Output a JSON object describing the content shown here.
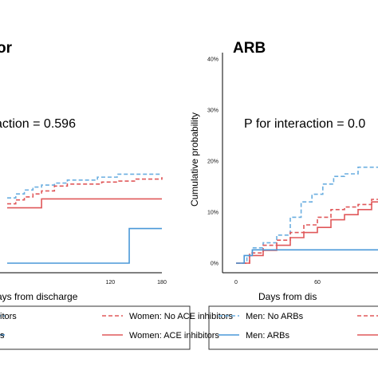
{
  "chart_data": [
    {
      "type": "line",
      "title": "or",
      "annotation": "action = 0.596",
      "xlabel": "ays from discharge",
      "ylabel": "",
      "x_ticks": [
        120,
        180
      ],
      "y_ticks": [],
      "series": [
        {
          "name": "",
          "color": "#6aaee0",
          "dashed": true,
          "x": [
            0,
            10,
            20,
            30,
            40,
            55,
            70,
            95,
            105,
            128,
            150,
            180
          ],
          "y": [
            13.2,
            14.0,
            14.8,
            15.4,
            15.8,
            16.2,
            16.8,
            16.8,
            17.4,
            18.0,
            18.0,
            18.0
          ]
        },
        {
          "name": "Women: No ACE inhibitors",
          "color": "#e0585a",
          "dashed": true,
          "x": [
            0,
            10,
            20,
            30,
            40,
            55,
            70,
            95,
            110,
            130,
            150,
            165,
            180
          ],
          "y": [
            12.0,
            12.8,
            13.4,
            14.0,
            14.6,
            15.6,
            16.0,
            16.0,
            16.4,
            16.6,
            17.0,
            17.0,
            17.4
          ]
        },
        {
          "name": "Women: ACE inhibitors",
          "color": "#e0585a",
          "dashed": false,
          "x": [
            0,
            30,
            40,
            55,
            180
          ],
          "y": [
            11.2,
            11.2,
            13.0,
            13.0,
            13.0
          ]
        },
        {
          "name": "",
          "color": "#4a98d8",
          "dashed": false,
          "x": [
            0,
            142,
            142,
            180
          ],
          "y": [
            0,
            0,
            7.0,
            7.0
          ]
        }
      ],
      "legend": [
        {
          "label": "itors",
          "color": "#6aaee0",
          "dashed": true
        },
        {
          "label": "Women: No ACE inhibitors",
          "color": "#e0585a",
          "dashed": true
        },
        {
          "label": "s",
          "color": "#4a98d8",
          "dashed": false
        },
        {
          "label": "Women: ACE inhibitors",
          "color": "#e0585a",
          "dashed": false
        }
      ]
    },
    {
      "type": "line",
      "title": "ARB",
      "annotation": "P for interaction = 0.0",
      "xlabel": "Days from dis",
      "ylabel": "Cumulative probability",
      "x_ticks": [
        0,
        60
      ],
      "y_ticks": [
        "0%",
        "10%",
        "20%",
        "30%",
        "40%"
      ],
      "ylim": [
        0,
        40
      ],
      "series": [
        {
          "name": "Men: No ARBs",
          "color": "#6aaee0",
          "dashed": true,
          "x": [
            0,
            8,
            12,
            20,
            30,
            40,
            48,
            56,
            64,
            72,
            80,
            90,
            105,
            115
          ],
          "y": [
            0,
            1.5,
            3.0,
            4.0,
            5.5,
            9.0,
            12.0,
            13.5,
            15.5,
            17.0,
            17.5,
            18.8,
            18.8,
            18.8
          ]
        },
        {
          "name": "",
          "color": "#e0585a",
          "dashed": true,
          "x": [
            0,
            10,
            20,
            30,
            40,
            50,
            60,
            70,
            80,
            90,
            100,
            115
          ],
          "y": [
            0,
            2.0,
            3.5,
            4.5,
            6.0,
            7.5,
            9.0,
            10.5,
            11.0,
            11.5,
            12.5,
            13.5
          ]
        },
        {
          "name": "",
          "color": "#e0585a",
          "dashed": false,
          "x": [
            0,
            10,
            20,
            30,
            40,
            50,
            60,
            70,
            80,
            90,
            100,
            115
          ],
          "y": [
            0,
            1.5,
            2.5,
            3.5,
            5.0,
            6.0,
            7.0,
            8.5,
            9.5,
            10.5,
            12.0,
            13.0
          ]
        },
        {
          "name": "Men: ARBs",
          "color": "#4a98d8",
          "dashed": false,
          "x": [
            0,
            6,
            6,
            12,
            12,
            115
          ],
          "y": [
            0,
            0,
            1.5,
            1.5,
            2.6,
            2.6
          ]
        }
      ],
      "legend": [
        {
          "label": "Men: No ARBs",
          "color": "#6aaee0",
          "dashed": true
        },
        {
          "label": "",
          "color": "#e0585a",
          "dashed": true
        },
        {
          "label": "Men: ARBs",
          "color": "#4a98d8",
          "dashed": false
        },
        {
          "label": "",
          "color": "#e0585a",
          "dashed": false
        }
      ]
    }
  ]
}
